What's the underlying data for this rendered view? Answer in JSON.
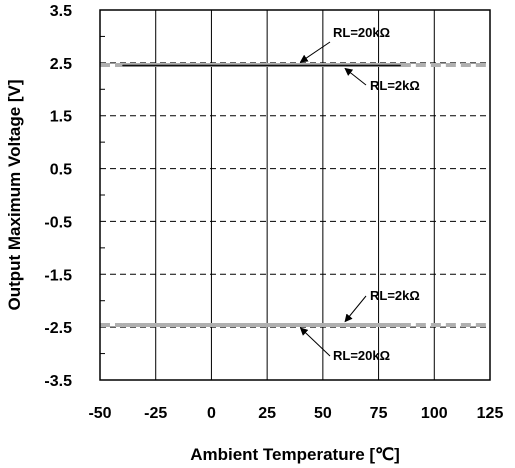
{
  "chart_data": {
    "type": "line",
    "title": "",
    "xlabel": "Ambient Temperature [℃]",
    "ylabel": "Output Maximum Voltage [V]",
    "xlim": [
      -50,
      125
    ],
    "ylim": [
      -3.5,
      3.5
    ],
    "x_ticks": [
      -50,
      -25,
      0,
      25,
      50,
      75,
      100,
      125
    ],
    "x_tick_labels": [
      "-50",
      "-25",
      "0",
      "25",
      "50",
      "75",
      "100",
      "125"
    ],
    "y_ticks": [
      -3.5,
      -2.5,
      -1.5,
      -0.5,
      0.5,
      1.5,
      2.5,
      3.5
    ],
    "y_tick_labels": [
      "-3.5",
      "-2.5",
      "-1.5",
      "-0.5",
      "0.5",
      "1.5",
      "2.5",
      "3.5"
    ],
    "grid": {
      "x": "solid",
      "y": "dashed"
    },
    "series": [
      {
        "name": "RL=20kΩ",
        "polarity": "positive",
        "x": [
          -40,
          85
        ],
        "y": [
          2.46,
          2.46
        ],
        "color": "#b0b0b0"
      },
      {
        "name": "RL=2kΩ",
        "polarity": "positive",
        "x": [
          -40,
          85
        ],
        "y": [
          2.45,
          2.45
        ],
        "color": "#111111"
      },
      {
        "name": "RL=2kΩ",
        "polarity": "negative",
        "x": [
          -40,
          85
        ],
        "y": [
          -2.45,
          -2.45
        ],
        "color": "#111111"
      },
      {
        "name": "RL=20kΩ",
        "polarity": "negative",
        "x": [
          -40,
          85
        ],
        "y": [
          -2.46,
          -2.46
        ],
        "color": "#b0b0b0"
      }
    ],
    "annotations": [
      {
        "text": "RL=20kΩ",
        "target_series": 0
      },
      {
        "text": "RL=2kΩ",
        "target_series": 1
      },
      {
        "text": "RL=2kΩ",
        "target_series": 2
      },
      {
        "text": "RL=20kΩ",
        "target_series": 3
      }
    ],
    "colors": {
      "axis": "#000000",
      "grid": "#000000",
      "light_series": "#b0b0b0",
      "dark_series": "#111111"
    }
  }
}
